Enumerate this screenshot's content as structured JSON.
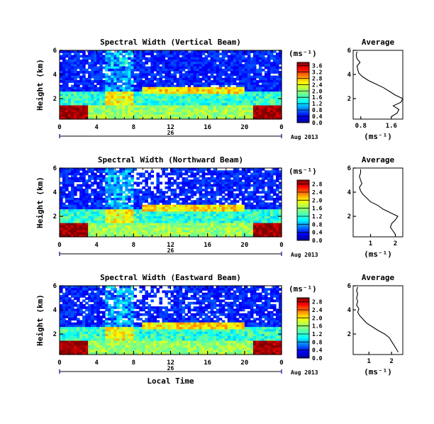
{
  "chart_data": [
    {
      "type": "heatmap",
      "title": "Spectral Width (Vertical Beam)",
      "ylabel": "Height (km)",
      "x_ticks": [
        "0",
        "4",
        "8",
        "12",
        "16",
        "20",
        "0"
      ],
      "y_ticks": [
        "2",
        "4",
        "6"
      ],
      "xlim": [
        0,
        24
      ],
      "ylim": [
        0.3,
        6.0
      ],
      "date_day": "26",
      "date_label": "Aug 2013",
      "colorbar": {
        "unit": "(ms⁻¹)",
        "ticks": [
          "0.0",
          "0.4",
          "0.8",
          "1.2",
          "1.6",
          "2.0",
          "2.4",
          "2.8",
          "3.2",
          "3.6"
        ],
        "min": 0.0,
        "max": 3.8
      },
      "average_profile": {
        "title": "Average",
        "xlabel": "(ms⁻¹)",
        "x_ticks": [
          "0.8",
          "1.6"
        ],
        "xlim": [
          0.6,
          1.9
        ],
        "y_ticks": [
          "2",
          "4",
          "6"
        ],
        "height_km": [
          0.5,
          0.8,
          1.1,
          1.4,
          1.7,
          2.0,
          2.3,
          2.6,
          2.9,
          3.2,
          3.5,
          3.8,
          4.1,
          4.4,
          4.7,
          5.0,
          5.3,
          5.6,
          5.9
        ],
        "width": [
          1.6,
          1.75,
          1.8,
          1.65,
          1.85,
          1.9,
          1.7,
          1.55,
          1.4,
          1.2,
          1.0,
          0.85,
          0.75,
          0.72,
          0.7,
          0.78,
          0.7,
          0.68,
          0.7
        ]
      }
    },
    {
      "type": "heatmap",
      "title": "Spectral Width (Northward Beam)",
      "ylabel": "Height (km)",
      "x_ticks": [
        "0",
        "4",
        "8",
        "12",
        "16",
        "20",
        "0"
      ],
      "y_ticks": [
        "2",
        "4",
        "6"
      ],
      "xlim": [
        0,
        24
      ],
      "ylim": [
        0.3,
        6.0
      ],
      "date_day": "26",
      "date_label": "Aug 2013",
      "colorbar": {
        "unit": "(ms⁻¹)",
        "ticks": [
          "0.0",
          "0.4",
          "0.8",
          "1.2",
          "1.6",
          "2.0",
          "2.4",
          "2.8"
        ],
        "min": 0.0,
        "max": 3.0
      },
      "average_profile": {
        "title": "Average",
        "xlabel": "(ms⁻¹)",
        "x_ticks": [
          "1",
          "2"
        ],
        "xlim": [
          0.3,
          2.3
        ],
        "y_ticks": [
          "2",
          "4",
          "6"
        ],
        "height_km": [
          0.5,
          0.8,
          1.1,
          1.4,
          1.7,
          2.0,
          2.3,
          2.6,
          2.9,
          3.2,
          3.5,
          3.8,
          4.1,
          4.4,
          4.7,
          5.0,
          5.3,
          5.6,
          5.9
        ],
        "width": [
          2.0,
          1.9,
          1.8,
          1.85,
          2.0,
          2.1,
          1.8,
          1.5,
          1.3,
          1.0,
          0.85,
          0.7,
          0.6,
          0.55,
          0.65,
          0.6,
          0.55,
          0.6,
          0.6
        ]
      }
    },
    {
      "type": "heatmap",
      "title": "Spectral Width (Eastward Beam)",
      "ylabel": "Height (km)",
      "xlabel": "Local Time",
      "x_ticks": [
        "0",
        "4",
        "8",
        "12",
        "16",
        "20",
        "0"
      ],
      "y_ticks": [
        "2",
        "4",
        "6"
      ],
      "xlim": [
        0,
        24
      ],
      "ylim": [
        0.3,
        6.0
      ],
      "date_day": "26",
      "date_label": "Aug 2013",
      "colorbar": {
        "unit": "(ms⁻¹)",
        "ticks": [
          "0.0",
          "0.4",
          "0.8",
          "1.2",
          "1.6",
          "2.0",
          "2.4",
          "2.8"
        ],
        "min": 0.0,
        "max": 3.0
      },
      "average_profile": {
        "title": "Average",
        "xlabel": "(ms⁻¹)",
        "x_ticks": [
          "1",
          "2"
        ],
        "xlim": [
          0.3,
          2.5
        ],
        "y_ticks": [
          "2",
          "4",
          "6"
        ],
        "height_km": [
          0.5,
          0.8,
          1.1,
          1.4,
          1.7,
          2.0,
          2.3,
          2.6,
          2.9,
          3.2,
          3.5,
          3.8,
          4.1,
          4.4,
          4.7,
          5.0,
          5.3,
          5.6,
          5.9
        ],
        "width": [
          2.3,
          2.2,
          2.1,
          2.0,
          1.9,
          1.7,
          1.4,
          1.15,
          0.9,
          0.75,
          0.6,
          0.5,
          0.55,
          0.45,
          0.5,
          0.45,
          0.5,
          0.45,
          0.5
        ]
      }
    }
  ]
}
